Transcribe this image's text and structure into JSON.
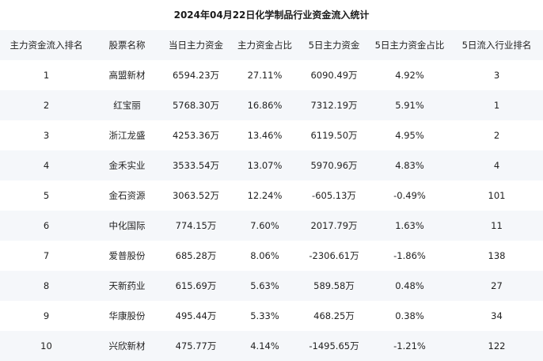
{
  "title": "2024年04月22日化学制品行业资金流入统计",
  "table": {
    "headers": [
      "主力资金流入排名",
      "股票名称",
      "当日主力资金",
      "主力资金占比",
      "5日主力资金",
      "5日主力资金占比",
      "5日流入行业排名"
    ],
    "rows": [
      [
        "1",
        "高盟新材",
        "6594.23万",
        "27.11%",
        "6090.49万",
        "4.92%",
        "3"
      ],
      [
        "2",
        "红宝丽",
        "5768.30万",
        "16.86%",
        "7312.19万",
        "5.91%",
        "1"
      ],
      [
        "3",
        "浙江龙盛",
        "4253.36万",
        "13.46%",
        "6119.50万",
        "4.95%",
        "2"
      ],
      [
        "4",
        "金禾实业",
        "3533.54万",
        "13.07%",
        "5970.96万",
        "4.83%",
        "4"
      ],
      [
        "5",
        "金石资源",
        "3063.52万",
        "12.24%",
        "-605.13万",
        "-0.49%",
        "101"
      ],
      [
        "6",
        "中化国际",
        "774.15万",
        "7.60%",
        "2017.79万",
        "1.63%",
        "11"
      ],
      [
        "7",
        "爱普股份",
        "685.28万",
        "8.06%",
        "-2306.61万",
        "-1.86%",
        "138"
      ],
      [
        "8",
        "天新药业",
        "615.69万",
        "5.63%",
        "589.58万",
        "0.48%",
        "27"
      ],
      [
        "9",
        "华康股份",
        "495.44万",
        "5.33%",
        "468.25万",
        "0.38%",
        "34"
      ],
      [
        "10",
        "兴欣新材",
        "475.77万",
        "4.14%",
        "-1495.65万",
        "-1.21%",
        "122"
      ]
    ]
  }
}
